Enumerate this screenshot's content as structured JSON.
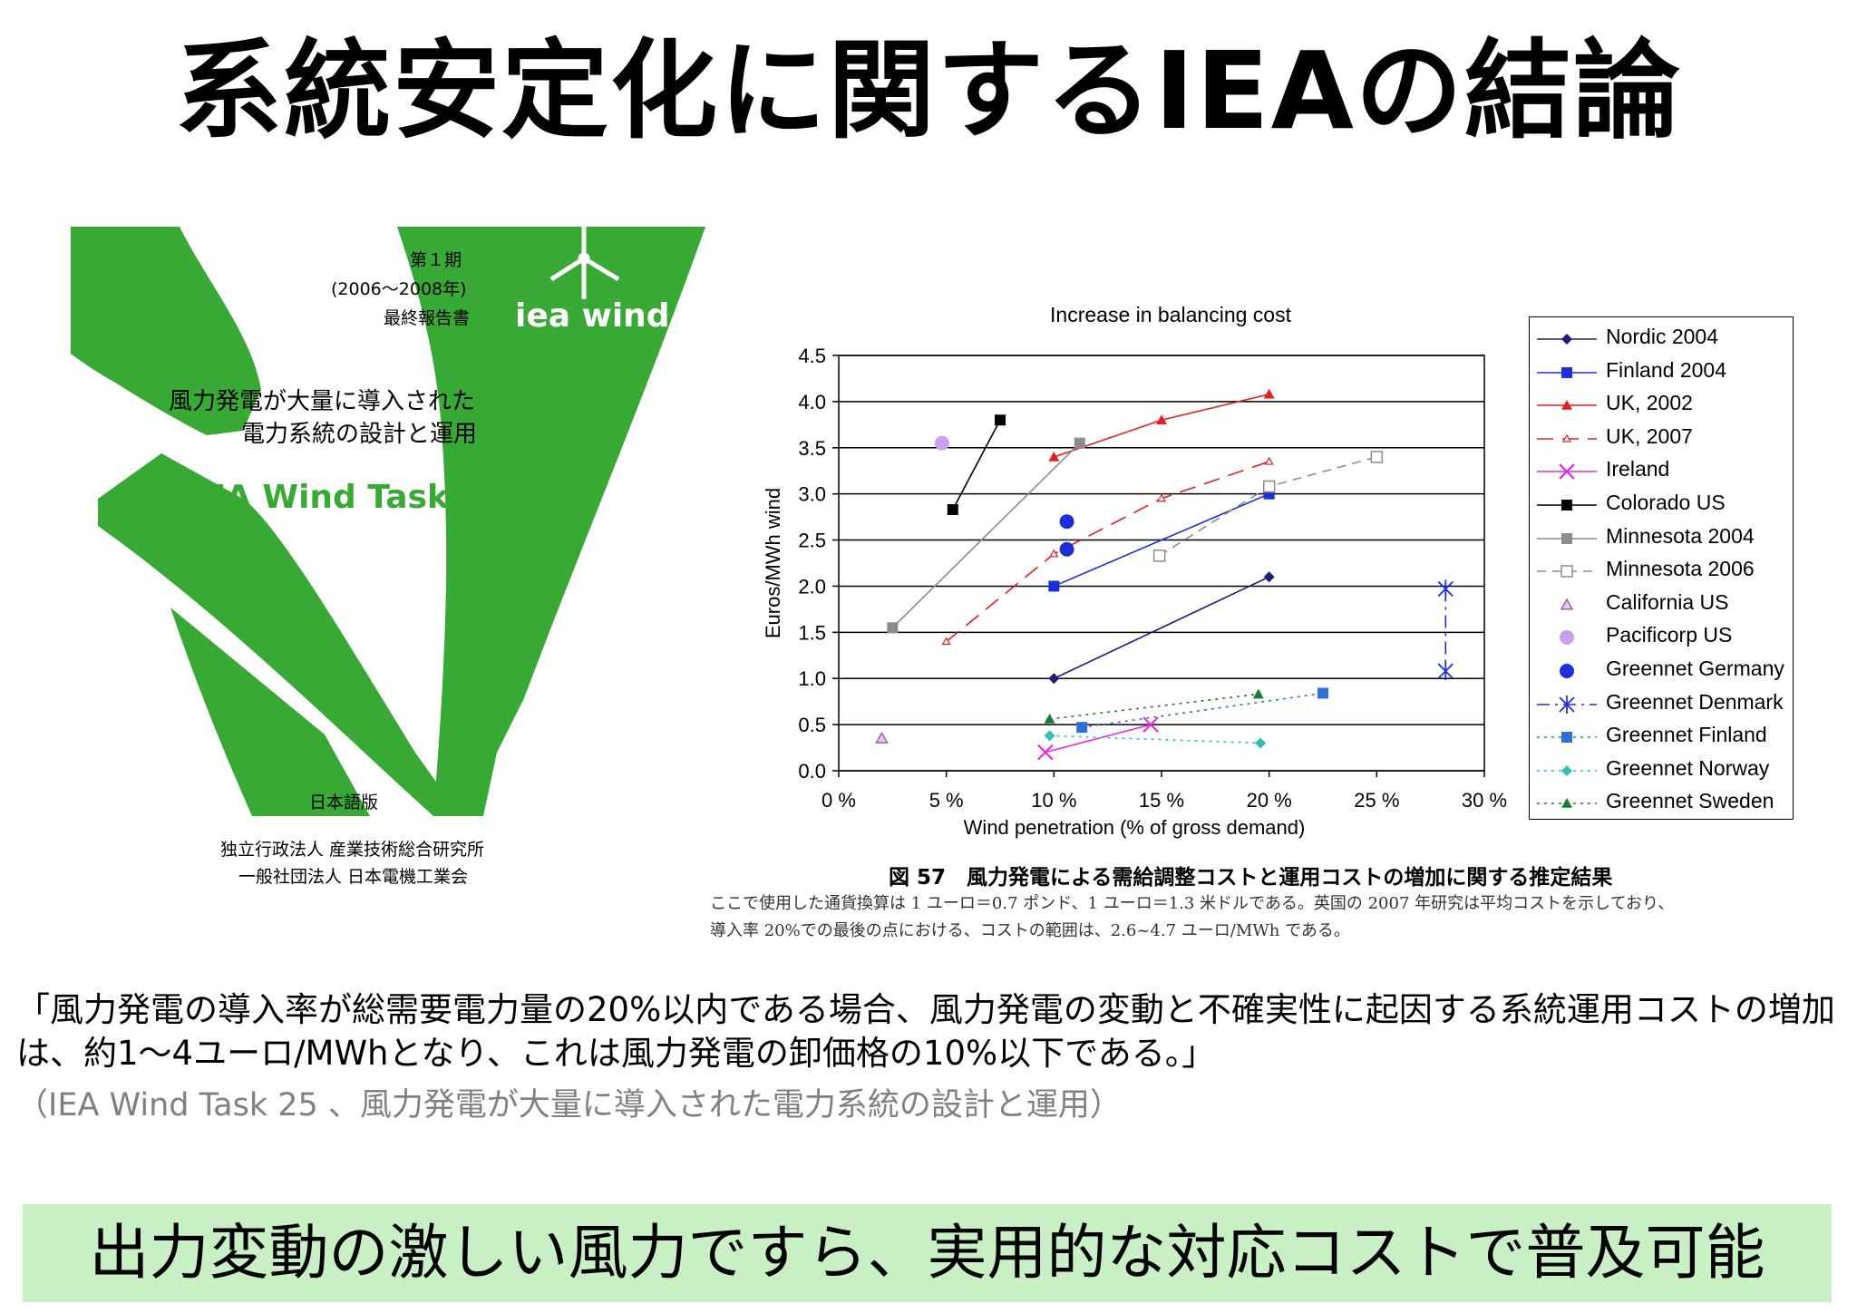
{
  "slide": {
    "title": "系統安定化に関するIEAの結論",
    "quote": "「風力発電の導入率が総需要電力量の20%以内である場合、風力発電の変動と不確実性に起因する系統運用コストの増加は、約1〜4ユーロ/MWhとなり、これは風力発電の卸価格の10%以下である。」",
    "source": "（IEA Wind Task 25 、風力発電が大量に導入された電力系統の設計と運用）",
    "banner": "出力変動の激しい風力ですら、実用的な対応コストで普及可能",
    "banner_color": "#c8f0c4"
  },
  "cover": {
    "period": "第１期",
    "years": "(2006〜2008年)",
    "report": "最終報告書",
    "logo_text": "iea wind",
    "subtitle_line1": "風力発電が大量に導入された",
    "subtitle_line2": "電力系統の設計と運用",
    "task": "IEA Wind Task 25",
    "edition": "日本語版",
    "org1": "独立行政法人  産業技術総合研究所",
    "org2": "一般社団法人  日本電機工業会",
    "green": "#39a935"
  },
  "figure": {
    "caption": "図 57　風力発電による需給調整コストと運用コストの増加に関する推定結果",
    "note1": "ここで使用した通貨換算は 1 ユーロ＝0.7 ポンド、1 ユーロ＝1.3 米ドルである。英国の 2007 年研究は平均コストを示しており、",
    "note2": "導入率 20%での最後の点における、コストの範囲は、2.6~4.7 ユーロ/MWh である。"
  },
  "chart_data": {
    "type": "line",
    "title": "Increase in balancing cost",
    "xlabel": "Wind penetration (% of gross demand)",
    "ylabel": "Euros/MWh wind",
    "xlim": [
      0,
      30
    ],
    "ylim": [
      0,
      4.5
    ],
    "x_ticks": [
      "0 %",
      "5 %",
      "10 %",
      "15 %",
      "20 %",
      "25 %",
      "30 %"
    ],
    "y_ticks": [
      "0.0",
      "0.5",
      "1.0",
      "1.5",
      "2.0",
      "2.5",
      "3.0",
      "3.5",
      "4.0",
      "4.5"
    ],
    "grid": "horizontal",
    "legend_position": "right",
    "series": [
      {
        "name": "Nordic 2004",
        "color": "#1f1f7a",
        "marker": "diamond",
        "dash": "solid",
        "points": [
          [
            10,
            1.0
          ],
          [
            20,
            2.1
          ]
        ]
      },
      {
        "name": "Finland 2004",
        "color": "#1f2fd8",
        "marker": "square",
        "dash": "solid",
        "points": [
          [
            10,
            2.0
          ],
          [
            20,
            3.0
          ]
        ]
      },
      {
        "name": "UK, 2002",
        "color": "#e0201f",
        "marker": "triangle",
        "dash": "solid",
        "points": [
          [
            10,
            3.4
          ],
          [
            15,
            3.8
          ],
          [
            20,
            4.08
          ]
        ]
      },
      {
        "name": "UK, 2007",
        "color": "#e0201f",
        "marker": "triangle-small",
        "dash": "longdash",
        "points": [
          [
            5,
            1.4
          ],
          [
            10,
            2.35
          ],
          [
            15,
            2.95
          ],
          [
            20,
            3.35
          ]
        ]
      },
      {
        "name": "Ireland",
        "color": "#ee22dd",
        "marker": "x",
        "dash": "solid",
        "points": [
          [
            9.6,
            0.2
          ],
          [
            14.5,
            0.5
          ]
        ]
      },
      {
        "name": "Colorado US",
        "color": "#000000",
        "marker": "square",
        "dash": "solid",
        "points": [
          [
            5.3,
            2.83
          ],
          [
            7.5,
            3.8
          ]
        ]
      },
      {
        "name": "Minnesota 2004",
        "color": "#8c8c8c",
        "marker": "square",
        "dash": "solid",
        "points": [
          [
            2.5,
            1.55
          ],
          [
            11.2,
            3.55
          ]
        ]
      },
      {
        "name": "Minnesota 2006",
        "color": "#8c8c8c",
        "marker": "open-square",
        "dash": "dash",
        "points": [
          [
            14.9,
            2.33
          ],
          [
            20,
            3.08
          ],
          [
            25,
            3.4
          ]
        ]
      },
      {
        "name": "California US",
        "color": "#9a60a8",
        "marker": "open-triangle",
        "dash": "none",
        "points": [
          [
            2,
            0.35
          ]
        ]
      },
      {
        "name": "Pacificorp US",
        "color": "#c8a0ee",
        "marker": "circle",
        "dash": "none",
        "points": [
          [
            4.8,
            3.55
          ]
        ]
      },
      {
        "name": "Greennet Germany",
        "color": "#1f2fd8",
        "marker": "circle",
        "dash": "none",
        "points": [
          [
            10.6,
            2.7
          ],
          [
            10.6,
            2.4
          ]
        ]
      },
      {
        "name": "Greennet Denmark",
        "color": "#1f2fd8",
        "marker": "asterisk",
        "dash": "dashdot",
        "points": [
          [
            28.2,
            1.97
          ],
          [
            28.2,
            1.08
          ]
        ]
      },
      {
        "name": "Greennet Finland",
        "color": "#2f6fd8",
        "marker": "square",
        "dash": "dot",
        "points": [
          [
            11.3,
            0.47
          ],
          [
            22.5,
            0.84
          ]
        ]
      },
      {
        "name": "Greennet Norway",
        "color": "#30c0b8",
        "marker": "diamond",
        "dash": "dot",
        "points": [
          [
            9.8,
            0.38
          ],
          [
            19.6,
            0.3
          ]
        ]
      },
      {
        "name": "Greennet Sweden",
        "color": "#1a7a3a",
        "marker": "triangle",
        "dash": "dot",
        "points": [
          [
            9.8,
            0.56
          ],
          [
            19.5,
            0.83
          ]
        ]
      }
    ]
  }
}
